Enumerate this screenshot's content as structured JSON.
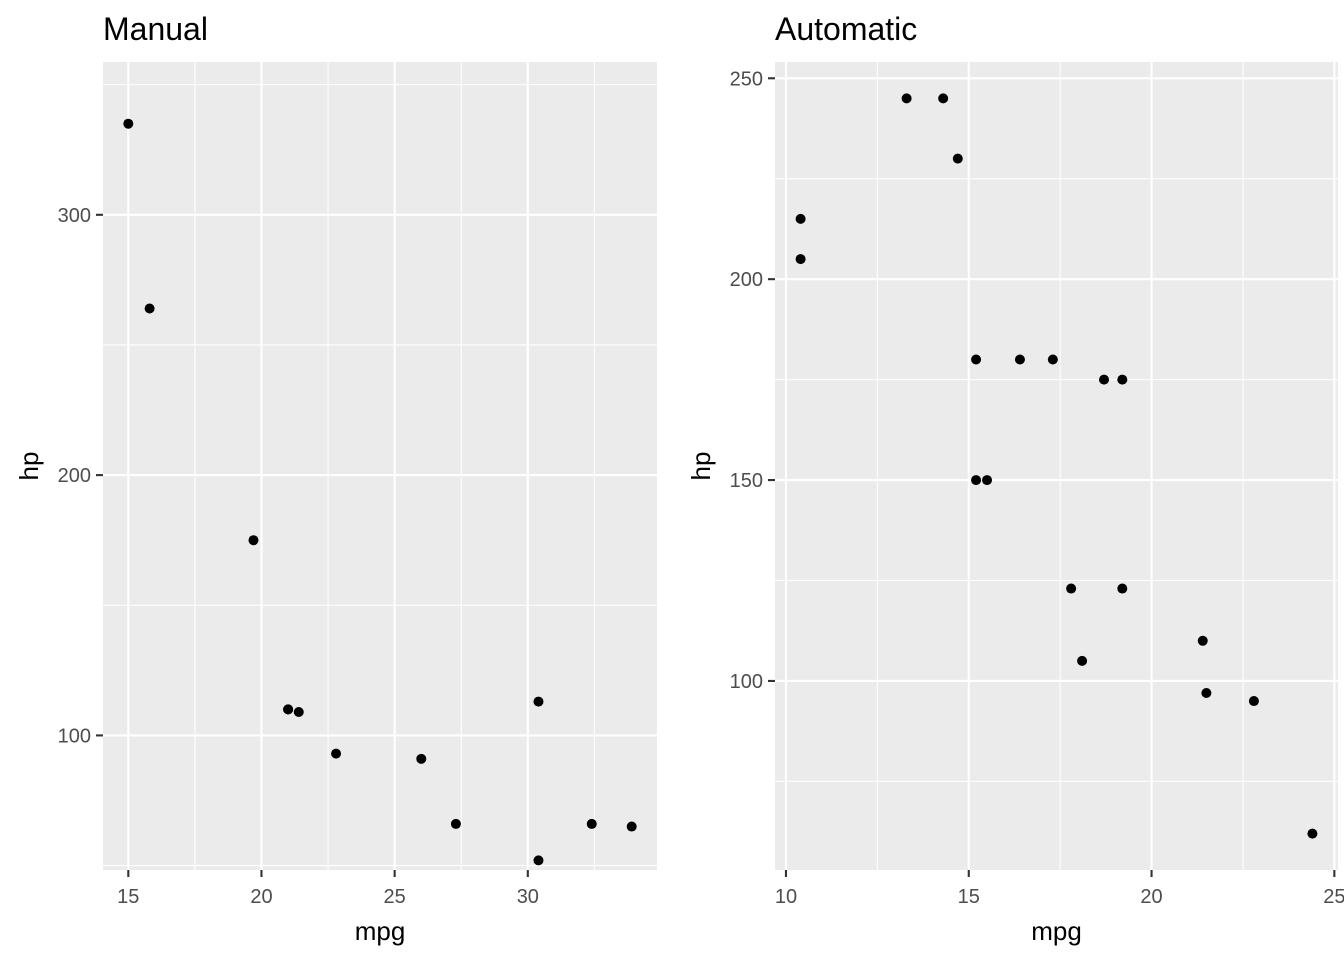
{
  "chart_data": [
    {
      "type": "scatter",
      "title": "Manual",
      "xlabel": "mpg",
      "ylabel": "hp",
      "xlim": [
        14.05,
        34.85
      ],
      "ylim": [
        48.3,
        358.7
      ],
      "xticks": [
        15,
        20,
        25,
        30
      ],
      "yticks": [
        100,
        200,
        300
      ],
      "grid": true,
      "series": [
        {
          "points": [
            {
              "x": 21.0,
              "y": 110
            },
            {
              "x": 21.0,
              "y": 110
            },
            {
              "x": 22.8,
              "y": 93
            },
            {
              "x": 32.4,
              "y": 66
            },
            {
              "x": 30.4,
              "y": 52
            },
            {
              "x": 33.9,
              "y": 65
            },
            {
              "x": 27.3,
              "y": 66
            },
            {
              "x": 26.0,
              "y": 91
            },
            {
              "x": 30.4,
              "y": 113
            },
            {
              "x": 15.8,
              "y": 264
            },
            {
              "x": 19.7,
              "y": 175
            },
            {
              "x": 15.0,
              "y": 335
            },
            {
              "x": 21.4,
              "y": 109
            }
          ]
        }
      ]
    },
    {
      "type": "scatter",
      "title": "Automatic",
      "xlabel": "mpg",
      "ylabel": "hp",
      "xlim": [
        9.7,
        25.1
      ],
      "ylim": [
        52.95,
        254.05
      ],
      "xticks": [
        10,
        15,
        20,
        25
      ],
      "yticks": [
        100,
        150,
        200,
        250
      ],
      "grid": true,
      "series": [
        {
          "points": [
            {
              "x": 21.4,
              "y": 110
            },
            {
              "x": 18.7,
              "y": 175
            },
            {
              "x": 18.1,
              "y": 105
            },
            {
              "x": 14.3,
              "y": 245
            },
            {
              "x": 24.4,
              "y": 62
            },
            {
              "x": 22.8,
              "y": 95
            },
            {
              "x": 19.2,
              "y": 123
            },
            {
              "x": 17.8,
              "y": 123
            },
            {
              "x": 16.4,
              "y": 180
            },
            {
              "x": 17.3,
              "y": 180
            },
            {
              "x": 15.2,
              "y": 180
            },
            {
              "x": 10.4,
              "y": 205
            },
            {
              "x": 10.4,
              "y": 215
            },
            {
              "x": 14.7,
              "y": 230
            },
            {
              "x": 21.5,
              "y": 97
            },
            {
              "x": 15.5,
              "y": 150
            },
            {
              "x": 15.2,
              "y": 150
            },
            {
              "x": 13.3,
              "y": 245
            },
            {
              "x": 19.2,
              "y": 175
            }
          ]
        }
      ]
    }
  ]
}
